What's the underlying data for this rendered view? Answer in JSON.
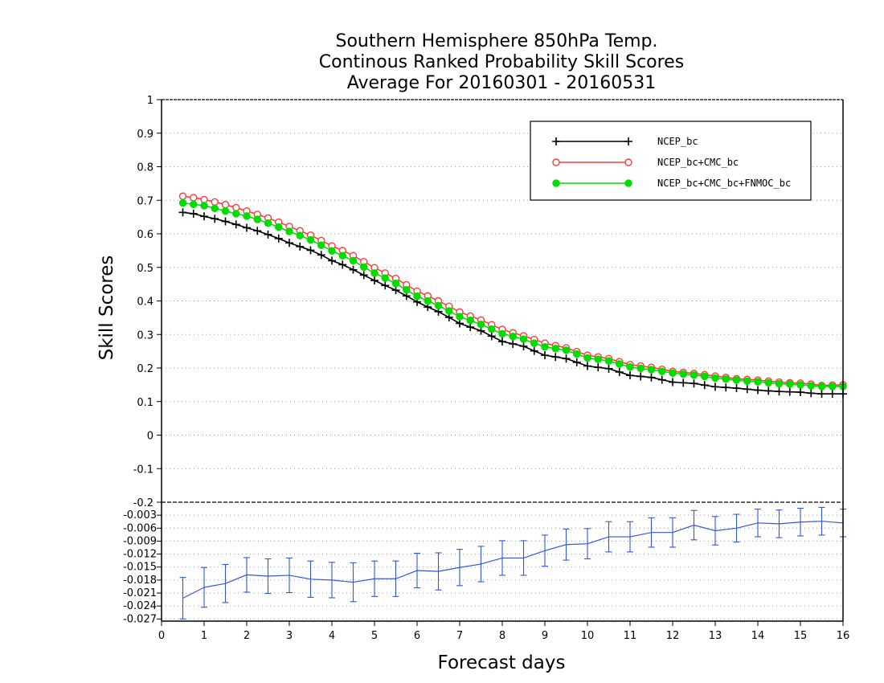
{
  "chart_data": [
    {
      "type": "line",
      "title_lines": [
        "Southern Hemisphere 850hPa Temp.",
        "Continous Ranked Probability Skill Scores",
        "Average For 20160301 - 20160531"
      ],
      "xlabel": "Forecast days",
      "ylabel": "Skill Scores",
      "xlim": [
        0,
        16
      ],
      "ylim": [
        -0.2,
        1
      ],
      "x_ticks": [
        0,
        1,
        2,
        3,
        4,
        5,
        6,
        7,
        8,
        9,
        10,
        11,
        12,
        13,
        14,
        15,
        16
      ],
      "y_ticks": [
        -0.2,
        -0.1,
        0,
        0.1,
        0.2,
        0.3,
        0.4,
        0.5,
        0.6,
        0.7,
        0.8,
        0.9,
        1
      ],
      "y_tick_labels": [
        "-0.2",
        "-0.1",
        "0",
        "0.1",
        "0.2",
        "0.3",
        "0.4",
        "0.5",
        "0.6",
        "0.7",
        "0.8",
        "0.9",
        "1"
      ],
      "grid": true,
      "legend_position": "top-right",
      "x": [
        0.5,
        0.75,
        1,
        1.25,
        1.5,
        1.75,
        2,
        2.25,
        2.5,
        2.75,
        3,
        3.25,
        3.5,
        3.75,
        4,
        4.25,
        4.5,
        4.75,
        5,
        5.25,
        5.5,
        5.75,
        6,
        6.25,
        6.5,
        6.75,
        7,
        7.25,
        7.5,
        7.75,
        8,
        8.25,
        8.5,
        8.75,
        9,
        9.25,
        9.5,
        9.75,
        10,
        10.25,
        10.5,
        10.75,
        11,
        11.25,
        11.5,
        11.75,
        12,
        12.25,
        12.5,
        12.75,
        13,
        13.25,
        13.5,
        13.75,
        14,
        14.25,
        14.5,
        14.75,
        15,
        15.25,
        15.5,
        15.75,
        16
      ],
      "series": [
        {
          "name": "NCEP_bc",
          "color": "#000000",
          "marker": "plus",
          "values": [
            0.664,
            0.66,
            0.652,
            0.645,
            0.637,
            0.628,
            0.618,
            0.609,
            0.598,
            0.586,
            0.573,
            0.562,
            0.551,
            0.537,
            0.52,
            0.508,
            0.493,
            0.477,
            0.461,
            0.446,
            0.432,
            0.415,
            0.397,
            0.382,
            0.368,
            0.351,
            0.333,
            0.322,
            0.311,
            0.295,
            0.279,
            0.272,
            0.265,
            0.251,
            0.238,
            0.233,
            0.228,
            0.217,
            0.206,
            0.202,
            0.198,
            0.188,
            0.178,
            0.175,
            0.172,
            0.165,
            0.158,
            0.156,
            0.154,
            0.149,
            0.144,
            0.142,
            0.14,
            0.137,
            0.134,
            0.132,
            0.13,
            0.129,
            0.128,
            0.125,
            0.123,
            0.123,
            0.123
          ]
        },
        {
          "name": "NCEP_bc+CMC_bc",
          "color": "#ff3b3b",
          "marker": "open-circle",
          "values": [
            0.712,
            0.708,
            0.702,
            0.695,
            0.687,
            0.678,
            0.668,
            0.658,
            0.647,
            0.635,
            0.622,
            0.609,
            0.596,
            0.58,
            0.564,
            0.55,
            0.535,
            0.517,
            0.499,
            0.483,
            0.467,
            0.448,
            0.429,
            0.415,
            0.4,
            0.384,
            0.367,
            0.355,
            0.343,
            0.329,
            0.315,
            0.305,
            0.296,
            0.285,
            0.274,
            0.267,
            0.26,
            0.249,
            0.238,
            0.233,
            0.228,
            0.219,
            0.21,
            0.206,
            0.202,
            0.196,
            0.19,
            0.187,
            0.184,
            0.18,
            0.176,
            0.172,
            0.168,
            0.166,
            0.164,
            0.161,
            0.158,
            0.156,
            0.155,
            0.152,
            0.148,
            0.149,
            0.15
          ]
        },
        {
          "name": "NCEP_bc+CMC_bc+FNMOC_bc",
          "color": "#00dd00",
          "marker": "filled-circle",
          "values": [
            0.692,
            0.688,
            0.684,
            0.676,
            0.668,
            0.66,
            0.653,
            0.643,
            0.632,
            0.62,
            0.607,
            0.595,
            0.582,
            0.566,
            0.549,
            0.535,
            0.52,
            0.501,
            0.483,
            0.468,
            0.452,
            0.433,
            0.414,
            0.4,
            0.386,
            0.37,
            0.353,
            0.342,
            0.33,
            0.316,
            0.302,
            0.294,
            0.286,
            0.274,
            0.263,
            0.258,
            0.253,
            0.242,
            0.23,
            0.226,
            0.221,
            0.212,
            0.203,
            0.199,
            0.195,
            0.19,
            0.185,
            0.182,
            0.179,
            0.175,
            0.17,
            0.167,
            0.164,
            0.161,
            0.159,
            0.156,
            0.153,
            0.152,
            0.15,
            0.147,
            0.145,
            0.145,
            0.145
          ]
        }
      ]
    },
    {
      "type": "line",
      "xlim": [
        0,
        16
      ],
      "ylim": [
        -0.0275,
        0
      ],
      "y_ticks": [
        -0.003,
        -0.006,
        -0.009,
        -0.012,
        -0.015,
        -0.018,
        -0.021,
        -0.024,
        -0.027
      ],
      "y_tick_labels": [
        "-0.003",
        "-0.006",
        "-0.009",
        "-0.012",
        "-0.015",
        "-0.018",
        "-0.021",
        "-0.024",
        "-0.027"
      ],
      "grid": true,
      "error_bars": true,
      "series": [
        {
          "color": "#3355dd",
          "x": [
            0.5,
            1,
            1.5,
            2,
            2.5,
            3,
            3.5,
            4,
            4.5,
            5,
            5.5,
            6,
            6.5,
            7,
            7.5,
            8,
            8.5,
            9,
            9.5,
            10,
            10.5,
            11,
            11.5,
            12,
            12.5,
            13,
            13.5,
            14,
            14.5,
            15,
            15.5,
            16
          ],
          "values": [
            -0.0222,
            -0.0197,
            -0.0188,
            -0.0168,
            -0.0171,
            -0.0169,
            -0.0178,
            -0.018,
            -0.0185,
            -0.0177,
            -0.0177,
            -0.0158,
            -0.016,
            -0.0151,
            -0.0143,
            -0.0129,
            -0.0129,
            -0.0112,
            -0.0098,
            -0.0096,
            -0.008,
            -0.008,
            -0.007,
            -0.007,
            -0.0053,
            -0.0066,
            -0.006,
            -0.0048,
            -0.005,
            -0.0046,
            -0.0044,
            -0.0048
          ],
          "error": [
            0.0048,
            0.0046,
            0.0044,
            0.004,
            0.004,
            0.004,
            0.0042,
            0.0041,
            0.0045,
            0.0041,
            0.0041,
            0.004,
            0.0043,
            0.0042,
            0.0041,
            0.004,
            0.004,
            0.0036,
            0.0036,
            0.0035,
            0.0035,
            0.0035,
            0.0034,
            0.0034,
            0.0034,
            0.0033,
            0.0032,
            0.0032,
            0.0032,
            0.0032,
            0.0032,
            0.0032
          ]
        }
      ]
    }
  ]
}
